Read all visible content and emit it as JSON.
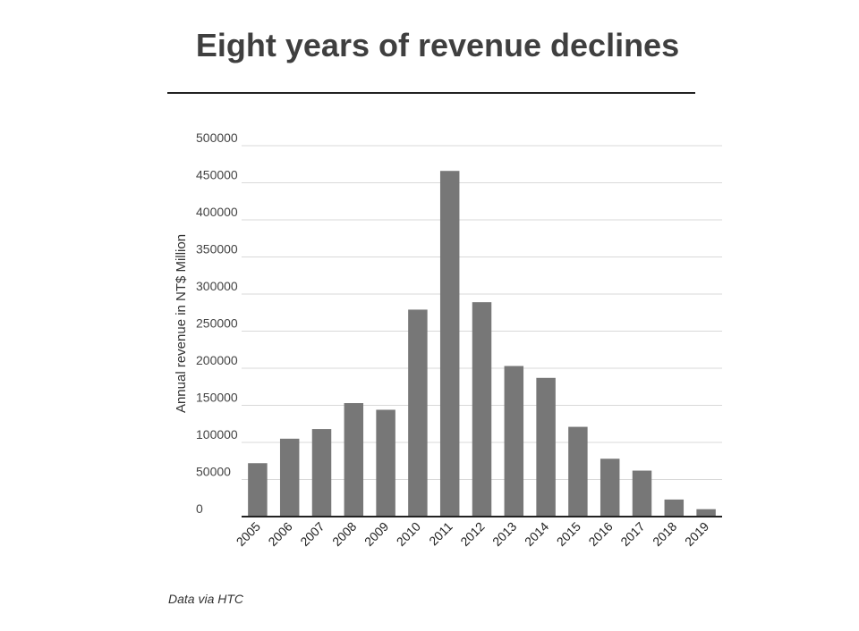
{
  "source_note": "Data via HTC",
  "chart_data": {
    "type": "bar",
    "title": "Eight years of revenue declines",
    "xlabel": "",
    "ylabel": "Annual revenue in NT$ Million",
    "categories": [
      "2005",
      "2006",
      "2007",
      "2008",
      "2009",
      "2010",
      "2011",
      "2012",
      "2013",
      "2014",
      "2015",
      "2016",
      "2017",
      "2018",
      "2019"
    ],
    "values": [
      72000,
      105000,
      118000,
      153000,
      144000,
      279000,
      466000,
      289000,
      203000,
      187000,
      121000,
      78000,
      62000,
      23000,
      10000
    ],
    "ylim": [
      0,
      500000
    ],
    "yticks": [
      "0",
      "50000",
      "100000",
      "150000",
      "200000",
      "250000",
      "300000",
      "350000",
      "400000",
      "450000",
      "500000"
    ],
    "grid": true,
    "legend": "none",
    "bar_color": "#777777",
    "grid_color": "#d9d9d9",
    "axis_color": "#222222"
  }
}
